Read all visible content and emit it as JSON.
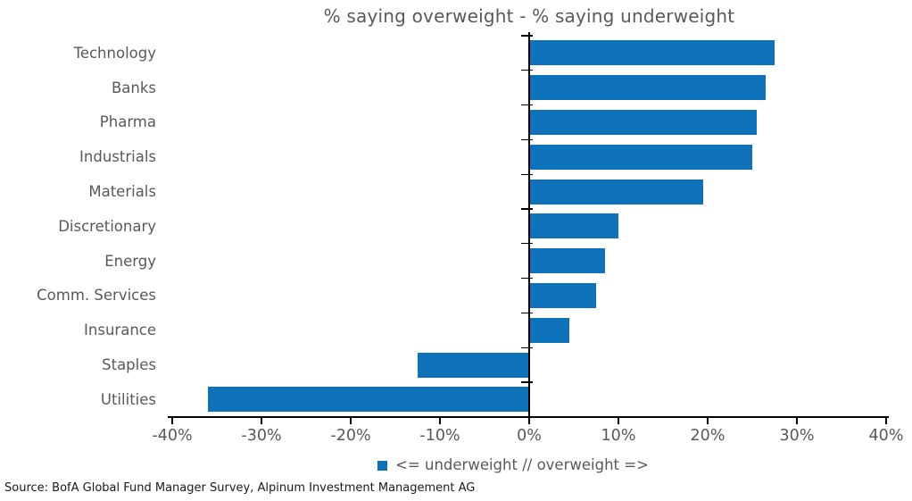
{
  "chart_data": {
    "type": "bar",
    "orientation": "horizontal",
    "title": "% saying overweight - % saying underweight",
    "categories": [
      "Technology",
      "Banks",
      "Pharma",
      "Industrials",
      "Materials",
      "Discretionary",
      "Energy",
      "Comm. Services",
      "Insurance",
      "Staples",
      "Utilities"
    ],
    "values": [
      27.5,
      26.5,
      25.5,
      25,
      19.5,
      10,
      8.5,
      7.5,
      4.5,
      -12.5,
      -36
    ],
    "unit": "%",
    "xlim": [
      -40,
      40
    ],
    "x_ticks": [
      {
        "value": -40,
        "label": "-40%"
      },
      {
        "value": -30,
        "label": "-30%"
      },
      {
        "value": -20,
        "label": "-20%"
      },
      {
        "value": -10,
        "label": "-10%"
      },
      {
        "value": 0,
        "label": "0%"
      },
      {
        "value": 10,
        "label": "10%"
      },
      {
        "value": 20,
        "label": "20%"
      },
      {
        "value": 30,
        "label": "30%"
      },
      {
        "value": 40,
        "label": "40%"
      }
    ],
    "grid": false,
    "legend": {
      "label": "<= underweight // overweight =>",
      "position": "bottom-center"
    },
    "bar_color": "#0d72b9"
  },
  "source_note": "Source: BofA Global Fund Manager Survey, Alpinum Investment Management AG",
  "colors": {
    "bar": "#0d72b9",
    "text_gray": "#595959",
    "axis": "#000000"
  }
}
